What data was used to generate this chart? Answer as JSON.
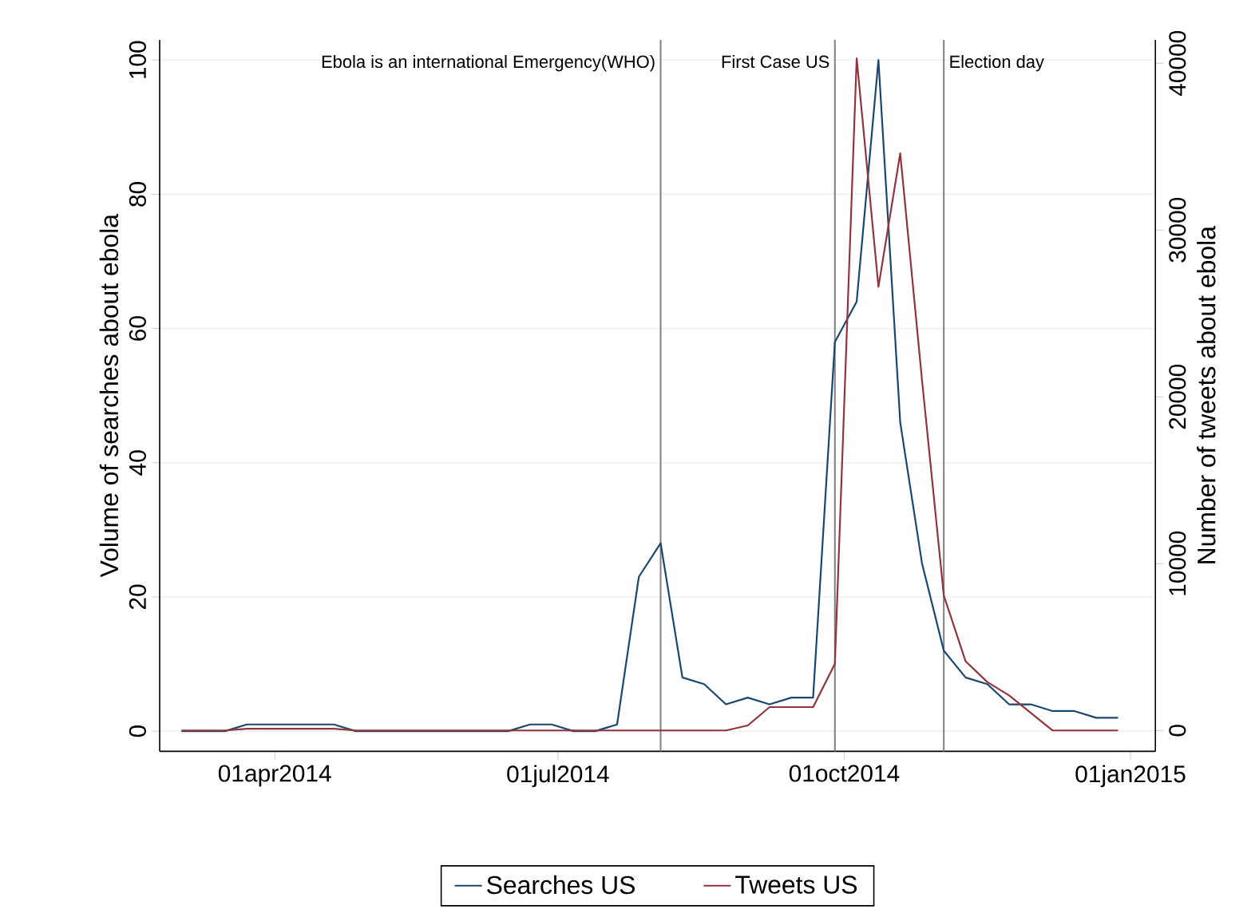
{
  "chart_data": {
    "type": "line",
    "x": [
      "2014-03-02",
      "2014-03-09",
      "2014-03-16",
      "2014-03-23",
      "2014-03-30",
      "2014-04-06",
      "2014-04-13",
      "2014-04-20",
      "2014-04-27",
      "2014-05-04",
      "2014-05-11",
      "2014-05-18",
      "2014-05-25",
      "2014-06-01",
      "2014-06-08",
      "2014-06-15",
      "2014-06-22",
      "2014-06-29",
      "2014-07-06",
      "2014-07-13",
      "2014-07-20",
      "2014-07-27",
      "2014-08-03",
      "2014-08-10",
      "2014-08-17",
      "2014-08-24",
      "2014-08-31",
      "2014-09-07",
      "2014-09-14",
      "2014-09-21",
      "2014-09-28",
      "2014-10-05",
      "2014-10-12",
      "2014-10-19",
      "2014-10-26",
      "2014-11-02",
      "2014-11-09",
      "2014-11-16",
      "2014-11-23",
      "2014-11-30",
      "2014-12-07",
      "2014-12-14",
      "2014-12-21",
      "2014-12-28"
    ],
    "series": [
      {
        "name": "Searches US",
        "color": "#1a476f",
        "values": [
          0,
          0,
          0,
          1,
          1,
          1,
          1,
          1,
          0,
          0,
          0,
          0,
          0,
          0,
          0,
          0,
          1,
          1,
          0,
          0,
          1,
          23,
          28,
          8,
          7,
          4,
          5,
          4,
          5,
          5,
          58,
          64,
          100,
          46,
          25,
          12,
          8,
          7,
          4,
          4,
          3,
          3,
          2,
          2
        ]
      },
      {
        "name": "Tweets US",
        "color": "#90353b",
        "axis": "y2",
        "values": [
          0,
          0,
          0,
          100,
          100,
          100,
          100,
          100,
          0,
          0,
          0,
          0,
          0,
          0,
          0,
          0,
          0,
          0,
          0,
          0,
          0,
          0,
          0,
          0,
          0,
          0,
          300,
          1400,
          1400,
          1400,
          4000,
          40300,
          26600,
          34600,
          21000,
          8100,
          4150,
          2900,
          2100,
          1050,
          0,
          0,
          0,
          0
        ]
      }
    ],
    "xlim": [
      "2014-02-23",
      "2015-01-09"
    ],
    "xticks": [
      {
        "value": "2014-04-01",
        "label": "01apr2014"
      },
      {
        "value": "2014-07-01",
        "label": "01jul2014"
      },
      {
        "value": "2014-10-01",
        "label": "01oct2014"
      },
      {
        "value": "2015-01-01",
        "label": "01jan2015"
      }
    ],
    "ylim": [
      -3,
      103
    ],
    "yticks": [
      0,
      20,
      40,
      60,
      80,
      100
    ],
    "y2lim": [
      -1250,
      41400
    ],
    "y2ticks": [
      0,
      10000,
      20000,
      30000,
      40000
    ],
    "ylabel": "Volume of searches about ebola",
    "y2label": "Number of tweets about ebola",
    "ref_lines": [
      {
        "axis": "x",
        "value": "2014-08-03",
        "label": "Ebola is an international Emergency(WHO)",
        "color": "#7f7f7f"
      },
      {
        "axis": "x",
        "value": "2014-09-28",
        "label": "First Case US",
        "color": "#7f7f7f"
      },
      {
        "axis": "x",
        "value": "2014-11-02",
        "label": "Election day",
        "color": "#7f7f7f"
      }
    ],
    "grid": "y",
    "legend": "bottom",
    "line_style": "solid",
    "marker": "none"
  }
}
